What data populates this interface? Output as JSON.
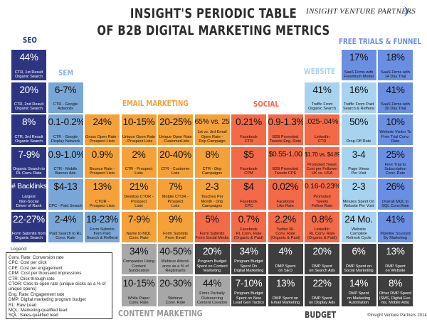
{
  "title": {
    "line1": "INSIGHT'S PERIODIC TABLE",
    "line2": "OF B2B DIGITAL MARKETING METRICS"
  },
  "logo": "INSIGHT VENTURE PARTNERS",
  "categories": {
    "seo": {
      "label": "SEO",
      "color": "#2d3580",
      "header_color": "#2d3580",
      "text": "#ffffff"
    },
    "sem": {
      "label": "SEM",
      "color": "#79a6d6",
      "header_color": "#8fb4de",
      "text": "#111111"
    },
    "email": {
      "label": "EMAIL MARKETING",
      "color": "#f4a13a",
      "header_color": "#f4a13a",
      "text": "#111111"
    },
    "social": {
      "label": "SOCIAL",
      "color": "#f26a47",
      "header_color": "#f26a47",
      "text": "#111111"
    },
    "website": {
      "label": "WEBSITE",
      "color": "#a8d3ef",
      "header_color": "#a8d3ef",
      "text": "#111111"
    },
    "funnel": {
      "label": "FREE TRIALS & FUNNEL",
      "color": "#6a8fe2",
      "header_color": "#6a8fe2",
      "text": "#111111"
    },
    "content": {
      "label": "CONTENT MARKETING",
      "color": "#a7a7a7",
      "header_color": "#999999",
      "text": "#111111"
    },
    "budget": {
      "label": "BUDGET",
      "color": "#3e3e3e",
      "header_color": "#3e3e3e",
      "text": "#ffffff"
    }
  },
  "grid": [
    [
      {
        "v": "44%",
        "l": "CTR, 1st Result\nOrganic Search",
        "c": "seo"
      },
      null,
      null,
      null,
      null,
      null,
      null,
      null,
      null,
      {
        "v": "17%",
        "l": "SaaS Firms with\nFreemium Model",
        "c": "funnel"
      },
      {
        "v": "18%",
        "l": "SaaS Firms with\n14 Day Trial",
        "c": "funnel"
      }
    ],
    [
      {
        "v": "20%",
        "l": "CTR, 2nd Result\nOrganic Search",
        "c": "seo"
      },
      {
        "v": "6-7%",
        "l": "CTR - Google\nAdwords",
        "c": "sem"
      },
      null,
      null,
      null,
      null,
      null,
      null,
      {
        "v": "41%",
        "l": "Traffic From\nOrganic Search",
        "c": "website"
      },
      {
        "v": "16%",
        "l": "Traffic From Paid\nSearch & Refferal",
        "c": "website"
      },
      {
        "v": "41%",
        "l": "SaaS Firms with\n30 Day Trial",
        "c": "funnel"
      }
    ],
    [
      {
        "v": "8%",
        "l": "CTR, 3rd Result\nOrganic Search",
        "c": "seo"
      },
      {
        "v": "0.1-0.2%",
        "l": "CTR - Google\nDisplay Network",
        "c": "sem"
      },
      {
        "v": "24%",
        "l": "Gross Open Rate -\nProspect Lists",
        "c": "email"
      },
      {
        "v": "10-15%",
        "l": "Unique Open Rate\n- Prospect Lists",
        "c": "email"
      },
      {
        "v": "20-25%",
        "l": "Unique Open Rate\n- CustomerLists",
        "c": "email"
      },
      {
        "v": "65% vs. 25%",
        "l": "1st vs. 3rd Email\nOpen Rate -\nDrip Campaign",
        "c": "email"
      },
      {
        "v": "0.21%",
        "l": "Facebook\nCTR",
        "c": "social"
      },
      {
        "v": "0.9-1.3%",
        "l": "B2B Promoted\nTweets Eng. Rate",
        "c": "social"
      },
      {
        "v": ".025-.04%",
        "l": "LinkedIn\nCTR",
        "c": "social"
      },
      {
        "v": "50%",
        "l": "Drop-Off Rate",
        "c": "website"
      },
      {
        "v": "10%",
        "l": "Website Visitor To\nFree Trial Conv. Rate",
        "c": "funnel"
      }
    ],
    [
      {
        "v": "7-9%",
        "l": "Organic Search to\nRL Conv. Rate",
        "c": "seo"
      },
      {
        "v": "0.9-1.0%",
        "l": "CTR - Mobile\nBanner Ads",
        "c": "sem"
      },
      {
        "v": "0.9%",
        "l": "Bounce Rate -\nProspect Lists",
        "c": "email"
      },
      {
        "v": "2%",
        "l": "CTR - Prospect\nLists",
        "c": "email"
      },
      {
        "v": "20-40%",
        "l": "CTR - Customer\nLists",
        "c": "email"
      },
      {
        "v": "8%",
        "l": "CTR - Drip\nCampaigns",
        "c": "email"
      },
      {
        "v": "$5",
        "l": "Facebook\nCPM",
        "c": "social"
      },
      {
        "v": "$0.55-1.00",
        "l": "B2B Promoted\nTweets CPE",
        "c": "social"
      },
      {
        "v": "$1.70 vs. $4.89",
        "l": "Promoted Tweet\nCost per Follower\nUK vs. USA",
        "c": "social"
      },
      {
        "v": "3-4",
        "l": "Page Views\nPer Visit",
        "c": "website"
      },
      {
        "v": "25%",
        "l": "Free Trial to\nSubscription\nConv. Rate",
        "c": "funnel"
      }
    ],
    [
      {
        "v": "# Backlinks",
        "l": "Largest\nNon-Social\nDriver of Rank",
        "c": "seo"
      },
      {
        "v": "$4-13",
        "l": "CPC - Paid Search",
        "c": "sem"
      },
      {
        "v": "13%",
        "l": "CTOR -\nProspect Lists",
        "c": "email"
      },
      {
        "v": "21%",
        "l": "Desktop CTOR -\nProspect\nLists",
        "c": "email"
      },
      {
        "v": "7%",
        "l": "Mobile CTOR -\nProspect\nLists",
        "c": "email"
      },
      {
        "v": "2-3",
        "l": "Touches Per\nMonth - Drip\nCampaigns",
        "c": "email"
      },
      {
        "v": "$4",
        "l": "Facebook\nCPC",
        "c": "social"
      },
      {
        "v": "0.02%",
        "l": "Facebook\nLike Rate",
        "c": "social"
      },
      {
        "v": "0.16-0.23%",
        "l": "Promoted\nTweets\nFollow Rate",
        "c": "social"
      },
      {
        "v": "2-3",
        "l": "Minutes Spent On\nWebsite Per Visit",
        "c": "website"
      },
      {
        "v": "26%",
        "l": "Overall MQL to\nSQL Conv.Rate",
        "c": "funnel"
      }
    ],
    [
      {
        "v": "22-27%",
        "l": "Form Submits from\nOrganic Search",
        "c": "seo"
      },
      {
        "v": "2-4%",
        "l": "Paid Search to RL\nConv. Rate",
        "c": "sem"
      },
      {
        "v": "18-23%",
        "l": "Form Submits\nfrom Paid\nSearch & Refferal",
        "c": "sem"
      },
      {
        "v": "7-9%",
        "l": "Name to MQL\nConv. Rate",
        "c": "email"
      },
      {
        "v": "9%",
        "l": "Form Submits\nFrom Email",
        "c": "email"
      },
      {
        "v": "5%",
        "l": "Form Submits\nFrom Social Media",
        "c": "social"
      },
      {
        "v": "0.7%",
        "l": "Facebook\nRL Conv. Rate\n(Organic & Paid)",
        "c": "social"
      },
      {
        "v": "2.2%",
        "l": "Twitter RL\nConv. Rate\n(Organic & Paid)",
        "c": "social"
      },
      {
        "v": "0.8%",
        "l": "LinkedIn\nRL Conv. Rate\n(Organic & Paid)",
        "c": "social"
      },
      {
        "v": "24 Mo.",
        "l": "Website\nComplete\nRefresh Cycle",
        "c": "website"
      },
      {
        "v": "41%",
        "l": "Pipeline Sourced\nBy Marketing",
        "c": "funnel"
      }
    ],
    [
      null,
      null,
      null,
      {
        "v": "34%",
        "l": "Companies Using\nContent\nSyndication",
        "c": "content"
      },
      {
        "v": "40-50%",
        "l": "Webinar Attend-\nance as a % of\nRegistrants",
        "c": "content"
      },
      {
        "v": "20%",
        "l": "Program Budget\nSpent on Content\nMarketing",
        "c": "budget"
      },
      {
        "v": "34%",
        "l": "Program Budget\nSpent On\nDigital Marketing",
        "c": "budget"
      },
      {
        "v": "4%",
        "l": "DMP Spent\non SEO",
        "c": "budget"
      },
      {
        "v": "20%",
        "l": "DMP Spent\non Search Ads",
        "c": "budget"
      },
      {
        "v": "6%",
        "l": "DMP Spent on\nSocial Marketing",
        "c": "budget"
      },
      {
        "v": "13%",
        "l": "DMP Spent\non Website",
        "c": "budget"
      }
    ],
    [
      null,
      null,
      null,
      {
        "v": "10-15%",
        "l": "White Paper\nConv. Rate",
        "c": "content"
      },
      {
        "v": "20-30%",
        "l": "Webinar\nConv. Rate",
        "c": "content"
      },
      {
        "v": "44%",
        "l": "Firms Partially\nOutsourcing\nContent Creation",
        "c": "content"
      },
      {
        "v": "7-10%",
        "l": "Program Budget\nSpent on New\nLead Gen Tactics",
        "c": "budget"
      },
      {
        "v": "13%",
        "l": "DMP Spent on\nEmail Marketing",
        "c": "budget"
      },
      {
        "v": "22%",
        "l": "DMP Spent\non Display Ads",
        "c": "budget"
      },
      {
        "v": "14%",
        "l": "DMP Spent\non Marketing\nAutomation",
        "c": "budget"
      },
      {
        "v": "8%",
        "l": "Other DMP Spend\n(SMS, Digital Eve-\nnts, Mobile Ads)",
        "c": "budget"
      }
    ]
  ],
  "legend": {
    "title": "Legend:",
    "items": [
      "Conv. Rate: Conversion rate",
      "CPC: Cost per click",
      "CPE: Cost per engagement",
      "CPM: Cost per thousand impressions",
      "CTR: Click through rate",
      "CTOR: Click-to-open rate (unique clicks as a % of unique opens)",
      "Eng. Rate: Engagement rate",
      "DMP: Digital marketing program budget",
      "RL: Raw Lead",
      "MQL: Marketing-qualified lead",
      "SQL: Sales-qualified lead"
    ]
  },
  "copyright": "©Insight Venture Partners 2014"
}
